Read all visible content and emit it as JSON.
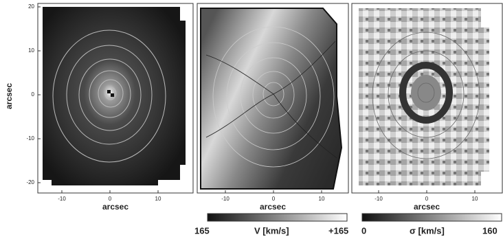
{
  "y_label": "arcsec",
  "panels": [
    {
      "x_label": "arcsec",
      "x_ticks": [
        -10,
        0,
        10
      ],
      "y_ticks": [
        20,
        10,
        0,
        -10,
        -20
      ]
    },
    {
      "x_label": "arcsec",
      "x_ticks": [
        -10,
        0,
        10
      ]
    },
    {
      "x_label": "arcsec",
      "x_ticks": [
        -10,
        0,
        10
      ]
    }
  ],
  "colorbars": [
    {
      "min_label": "165",
      "label": "V  [km/s]",
      "max_label": "+165"
    },
    {
      "min_label": "0",
      "label": "σ  [km/s]",
      "max_label": "160"
    }
  ]
}
